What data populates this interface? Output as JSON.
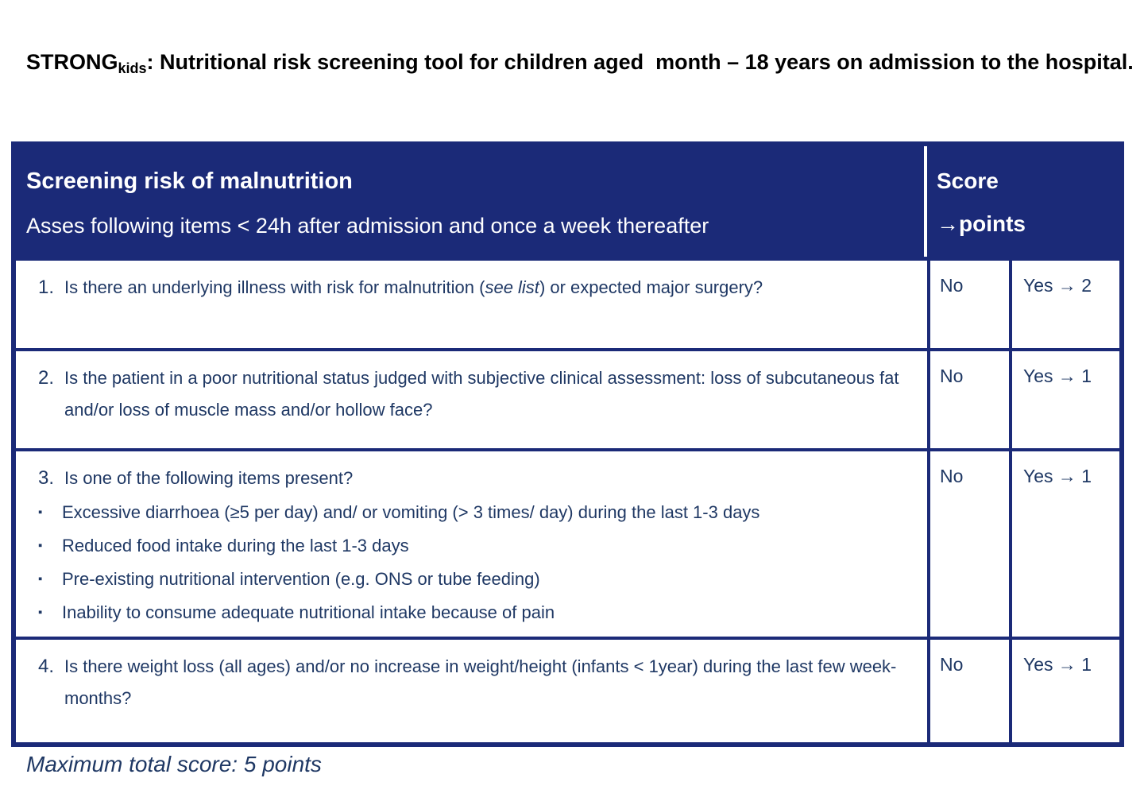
{
  "colors": {
    "navy": "#1b2a78",
    "text_navy": "#1f3864",
    "title_black": "#000000",
    "page_background": "#ffffff"
  },
  "page": {
    "title_prefix": "STRONG",
    "title_subscript": "kids",
    "title_rest": ": Nutritional risk screening tool for children aged  month – 18 years on admission to the hospital.",
    "footer": "Maximum total score: 5 points"
  },
  "table": {
    "bullet_glyph": "▪",
    "header": {
      "title": "Screening risk of malnutrition",
      "subtitle": "Asses following items < 24h after admission and once a week thereafter",
      "score_line1": "Score",
      "score_line2": "→points"
    },
    "rows": [
      {
        "number": "1.",
        "q_pre": "Is there an underlying illness with risk for malnutrition (",
        "q_italic": "see list",
        "q_post": ") or expected major surgery?",
        "no": "No",
        "yes": "Yes → 2"
      },
      {
        "number": "2.",
        "q_pre": "Is the patient in a poor nutritional status judged with subjective clinical assessment: loss of subcutaneous fat and/or loss of muscle mass and/or hollow face?",
        "q_italic": "",
        "q_post": "",
        "no": "No",
        "yes": "Yes → 1"
      },
      {
        "number": "3.",
        "q_pre": "Is one of the following items present?",
        "q_italic": "",
        "q_post": "",
        "bullets": [
          "Excessive diarrhoea (≥5 per day) and/ or vomiting (> 3 times/ day) during the last 1-3 days",
          "Reduced food intake during the last 1-3 days",
          "Pre-existing nutritional intervention (e.g. ONS or tube feeding)",
          "Inability to consume adequate nutritional intake because of pain"
        ],
        "no": "No",
        "yes": "Yes → 1"
      },
      {
        "number": "4.",
        "q_pre": "Is there weight loss (all ages) and/or no increase in weight/height (infants < 1year) during the last few week-months?",
        "q_italic": "",
        "q_post": "",
        "no": "No",
        "yes": "Yes → 1"
      }
    ]
  }
}
